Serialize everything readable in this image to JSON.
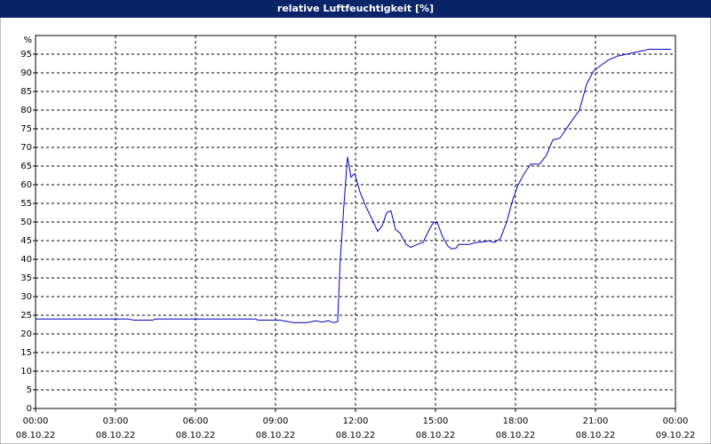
{
  "chart_data": {
    "type": "line",
    "title": "relative Luftfeuchtigkeit [%]",
    "y_label": "%",
    "x": [
      0,
      3.5,
      3.67,
      4.4,
      4.5,
      8.27,
      8.33,
      9.17,
      9.67,
      10.17,
      10.5,
      10.73,
      11,
      11.17,
      11.33,
      11.43,
      11.57,
      11.7,
      11.83,
      11.97,
      12.17,
      12.4,
      12.67,
      12.83,
      13,
      13.17,
      13.33,
      13.5,
      13.67,
      13.9,
      14.07,
      14.33,
      14.53,
      14.77,
      14.93,
      15.07,
      15.27,
      15.47,
      15.6,
      15.77,
      15.87,
      16.27,
      16.5,
      16.83,
      17,
      17.2,
      17.43,
      17.67,
      17.9,
      18.1,
      18.33,
      18.57,
      18.9,
      19.17,
      19.4,
      19.67,
      20,
      20.4,
      20.67,
      20.93,
      21.2,
      21.5,
      21.83,
      22.17,
      22.5,
      22.83,
      23,
      23.83
    ],
    "series": [
      {
        "color": "#0000c0",
        "values": [
          24,
          24,
          23.7,
          23.7,
          24,
          24,
          23.7,
          23.7,
          23,
          23,
          23.5,
          23.2,
          23.5,
          23,
          23.3,
          40,
          55,
          67.5,
          62,
          63,
          58,
          54,
          50,
          47.5,
          49,
          52.5,
          53,
          48,
          47,
          44,
          43.2,
          44,
          44.5,
          48,
          50,
          49.8,
          46,
          43.5,
          42.8,
          43,
          44,
          44,
          44.5,
          44.7,
          45,
          44.5,
          45.5,
          50,
          56,
          60,
          63,
          65.5,
          65.5,
          68,
          72,
          72.5,
          76,
          80,
          87,
          90.5,
          92,
          93.5,
          94.5,
          95,
          95.5,
          96,
          96.3,
          96.3
        ]
      }
    ],
    "xlim": [
      0,
      24
    ],
    "xticks": [
      {
        "value": 0,
        "label": "00:00"
      },
      {
        "value": 3,
        "label": "03:00"
      },
      {
        "value": 6,
        "label": "06:00"
      },
      {
        "value": 9,
        "label": "09:00"
      },
      {
        "value": 12,
        "label": "12:00"
      },
      {
        "value": 15,
        "label": "15:00"
      },
      {
        "value": 18,
        "label": "18:00"
      },
      {
        "value": 21,
        "label": "21:00"
      },
      {
        "value": 24,
        "label": "00:00"
      }
    ],
    "xtick_dates": [
      "08.10.22",
      "08.10.22",
      "08.10.22",
      "08.10.22",
      "08.10.22",
      "08.10.22",
      "08.10.22",
      "08.10.22",
      "09.10.22"
    ],
    "ylim": [
      0,
      100
    ],
    "yticks": [
      0,
      5,
      10,
      15,
      20,
      25,
      30,
      35,
      40,
      45,
      50,
      55,
      60,
      65,
      70,
      75,
      80,
      85,
      90,
      95
    ],
    "grid": true
  }
}
